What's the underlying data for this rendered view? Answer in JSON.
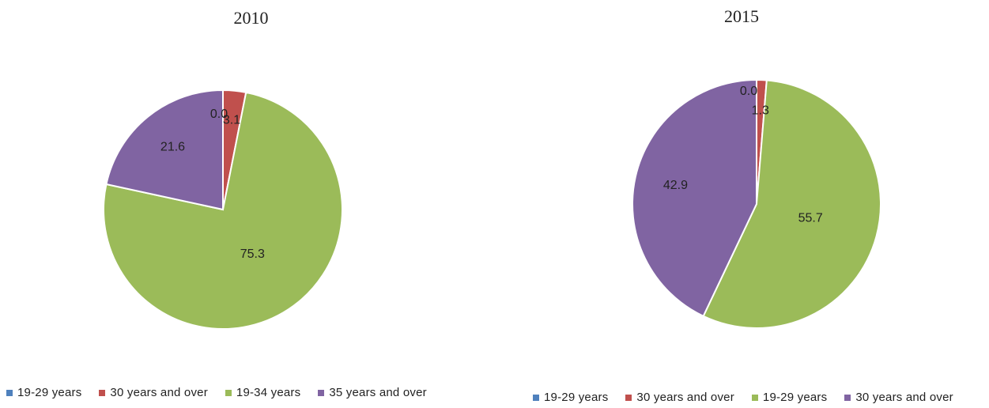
{
  "chart_data": [
    {
      "type": "pie",
      "title": "2010",
      "slices": [
        {
          "label": "19-29 years",
          "value": 0.0,
          "color": "#4f81bd"
        },
        {
          "label": "30 years and over",
          "value": 3.1,
          "color": "#c0504d"
        },
        {
          "label": "19-34 years",
          "value": 75.3,
          "color": "#9bbb59"
        },
        {
          "label": "35 years and over",
          "value": 21.6,
          "color": "#8064a2"
        }
      ],
      "data_labels": [
        "0.0",
        "3.1",
        "75.3",
        "21.6"
      ],
      "legend": [
        "19-29 years",
        "30 years and over",
        "19-34 years",
        "35 years and over"
      ],
      "legend_position": "bottom"
    },
    {
      "type": "pie",
      "title": "2015",
      "slices": [
        {
          "label": "19-29 years",
          "value": 0.0,
          "color": "#4f81bd"
        },
        {
          "label": "30 years and over",
          "value": 1.3,
          "color": "#c0504d"
        },
        {
          "label": "19-29 years",
          "value": 55.7,
          "color": "#9bbb59"
        },
        {
          "label": "30 years and over",
          "value": 42.9,
          "color": "#8064a2"
        }
      ],
      "data_labels": [
        "0.0",
        "1.3",
        "55.7",
        "42.9"
      ],
      "legend": [
        "19-29 years",
        "30 years and over",
        "19-29 years",
        "30 years and over"
      ],
      "legend_position": "bottom"
    }
  ]
}
